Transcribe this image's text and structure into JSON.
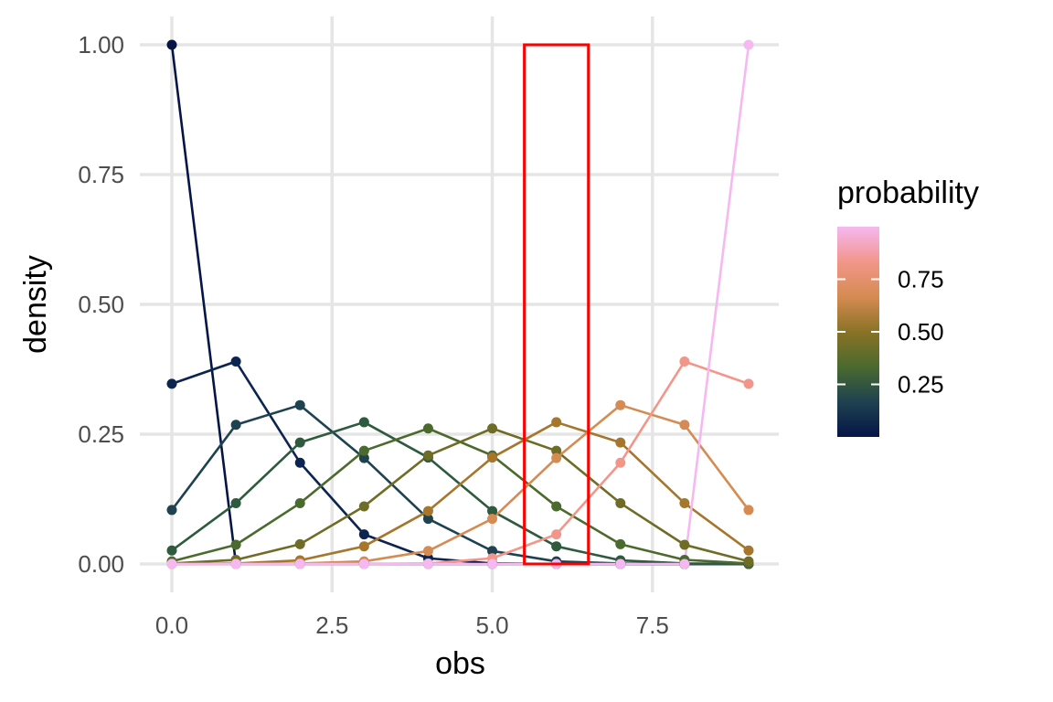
{
  "chart_data": {
    "type": "line",
    "xlabel": "obs",
    "ylabel": "density",
    "xlim": [
      0,
      9
    ],
    "ylim": [
      0,
      1
    ],
    "x": [
      0,
      1,
      2,
      3,
      4,
      5,
      6,
      7,
      8,
      9
    ],
    "x_ticks": [
      0,
      2.5,
      5,
      7.5
    ],
    "x_tick_labels": [
      "0.0",
      "2.5",
      "5.0",
      "7.5"
    ],
    "y_ticks": [
      0,
      0.25,
      0.5,
      0.75,
      1
    ],
    "y_tick_labels": [
      "0.00",
      "0.25",
      "0.50",
      "0.75",
      "1.00"
    ],
    "grid": true,
    "series": [
      {
        "name": "0.00",
        "probability": 0.0,
        "color": "#061547",
        "values": [
          1.0,
          0,
          0,
          0,
          0,
          0,
          0,
          0,
          0,
          0
        ]
      },
      {
        "name": "0.11",
        "probability": 0.111,
        "color": "#0c2450",
        "values": [
          0.347,
          0.39,
          0.195,
          0.057,
          0.011,
          0.001,
          0.0,
          0.0,
          0.0,
          0.0
        ]
      },
      {
        "name": "0.22",
        "probability": 0.222,
        "color": "#1e4250",
        "values": [
          0.104,
          0.268,
          0.306,
          0.204,
          0.087,
          0.025,
          0.005,
          0.001,
          0.0,
          0.0
        ]
      },
      {
        "name": "0.33",
        "probability": 0.333,
        "color": "#2e5a3e",
        "values": [
          0.026,
          0.117,
          0.234,
          0.273,
          0.205,
          0.102,
          0.034,
          0.007,
          0.001,
          0.0
        ]
      },
      {
        "name": "0.44",
        "probability": 0.444,
        "color": "#4b6a2e",
        "values": [
          0.005,
          0.037,
          0.117,
          0.218,
          0.261,
          0.209,
          0.111,
          0.038,
          0.008,
          0.001
        ]
      },
      {
        "name": "0.56",
        "probability": 0.556,
        "color": "#6f6c26",
        "values": [
          0.001,
          0.008,
          0.038,
          0.111,
          0.209,
          0.261,
          0.218,
          0.117,
          0.037,
          0.005
        ]
      },
      {
        "name": "0.67",
        "probability": 0.667,
        "color": "#a6762c",
        "values": [
          0.0,
          0.001,
          0.007,
          0.034,
          0.102,
          0.205,
          0.273,
          0.234,
          0.117,
          0.026
        ]
      },
      {
        "name": "0.78",
        "probability": 0.778,
        "color": "#d58b52",
        "values": [
          0.0,
          0.0,
          0.001,
          0.005,
          0.025,
          0.087,
          0.204,
          0.306,
          0.268,
          0.104
        ]
      },
      {
        "name": "0.89",
        "probability": 0.889,
        "color": "#f2968a",
        "values": [
          0.0,
          0.0,
          0.0,
          0.0,
          0.001,
          0.011,
          0.057,
          0.195,
          0.39,
          0.347
        ]
      },
      {
        "name": "1.00",
        "probability": 1.0,
        "color": "#f5b8f0",
        "values": [
          0,
          0,
          0,
          0,
          0,
          0,
          0,
          0,
          0,
          1.0
        ]
      }
    ],
    "highlight": {
      "x_range": [
        5.5,
        6.5
      ],
      "y_range": [
        0,
        1
      ],
      "color": "#ff0000"
    },
    "legend": {
      "title": "probability",
      "placement": "right",
      "breaks": [
        0.25,
        0.5,
        0.75
      ],
      "labels": [
        "0.25",
        "0.50",
        "0.75"
      ],
      "gradient": [
        "#061547",
        "#1e4250",
        "#4b6a2e",
        "#8a7226",
        "#d58b52",
        "#f2968a",
        "#f5b8f0"
      ],
      "range": [
        0,
        1
      ]
    }
  }
}
